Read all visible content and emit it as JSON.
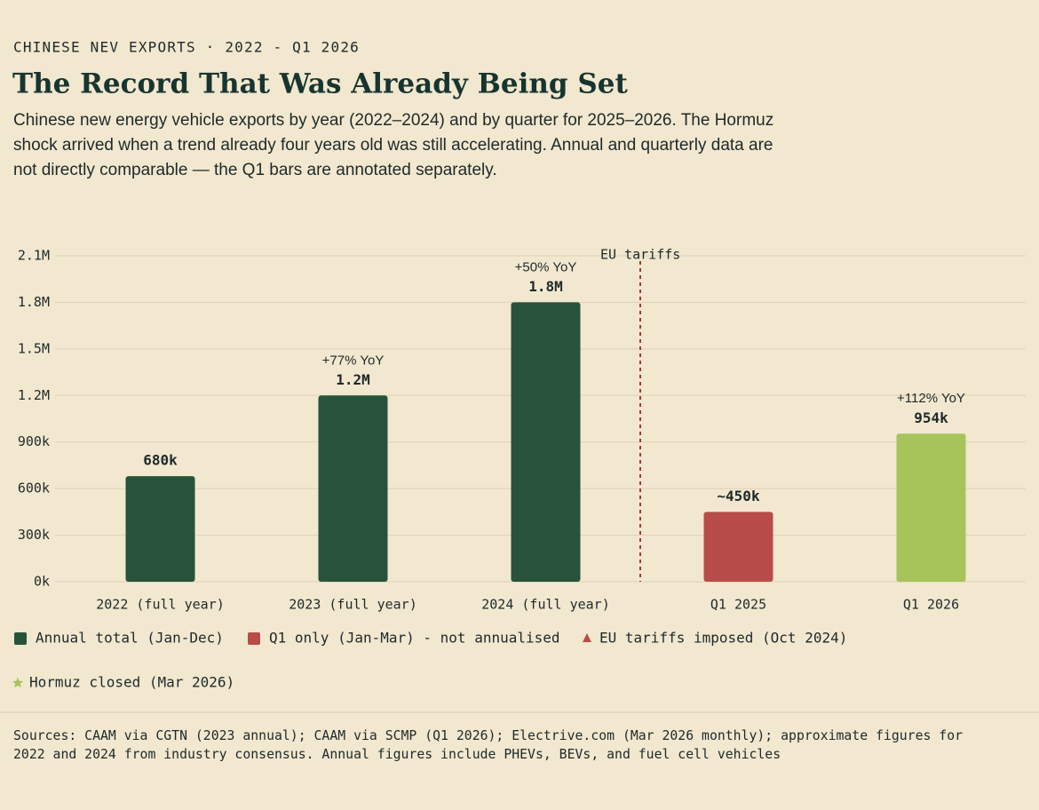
{
  "chart_data": {
    "type": "bar",
    "kicker": "CHINESE NEV EXPORTS · 2022 - Q1 2026",
    "title": "The Record That Was Already Being Set",
    "subtitle": [
      "Chinese new energy vehicle exports by year (2022–2024) and by quarter for 2025–2026. The Hormuz",
      "shock arrived when a trend already four years old was still accelerating. Annual and quarterly data are",
      "not directly comparable — the Q1 bars are annotated separately."
    ],
    "categories": [
      "2022 (full year)",
      "2023 (full year)",
      "2024 (full year)",
      "Q1 2025",
      "Q1 2026"
    ],
    "values": [
      680000,
      1200000,
      1800000,
      450000,
      954000
    ],
    "value_labels": [
      "680k",
      "1.2M",
      "1.8M",
      "~450k",
      "954k"
    ],
    "yoy_labels": [
      null,
      "+77% YoY",
      "+50% YoY",
      null,
      "+112% YoY"
    ],
    "colors": [
      "#27533a",
      "#27533a",
      "#27533a",
      "#b84c48",
      "#a6c45a"
    ],
    "ylim": [
      0,
      2100000
    ],
    "yticks": [
      {
        "value": 0,
        "label": "0k"
      },
      {
        "value": 300000,
        "label": "300k"
      },
      {
        "value": 600000,
        "label": "600k"
      },
      {
        "value": 900000,
        "label": "900k"
      },
      {
        "value": 1200000,
        "label": "1.2M"
      },
      {
        "value": 1500000,
        "label": "1.5M"
      },
      {
        "value": 1800000,
        "label": "1.8M"
      },
      {
        "value": 2100000,
        "label": "2.1M"
      }
    ],
    "grid": true,
    "event_line": {
      "label": "EU tariffs",
      "color": "#a33a35"
    },
    "legend": [
      {
        "name": "Annual total (Jan-Dec)",
        "marker": "square",
        "color": "#27533a"
      },
      {
        "name": "Q1 only (Jan-Mar) - not annualised",
        "marker": "square",
        "color": "#b84c48"
      },
      {
        "name": "EU tariffs imposed (Oct 2024)",
        "marker": "triangle",
        "color": "#b84c48"
      },
      {
        "name": "Hormuz closed (Mar 2026)",
        "marker": "star",
        "color": "#a6c45a"
      }
    ],
    "sources": [
      "Sources: CAAM via CGTN (2023 annual); CAAM via SCMP (Q1 2026); Electrive.com (Mar 2026 monthly); approximate figures for",
      "2022 and 2024 from industry consensus. Annual figures include PHEVs, BEVs, and fuel cell vehicles"
    ]
  }
}
